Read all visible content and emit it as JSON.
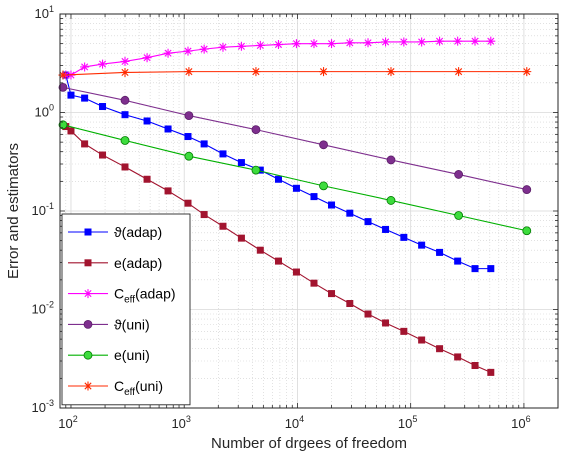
{
  "chart_data": {
    "type": "line",
    "xscale": "log",
    "yscale": "log",
    "xlim": [
      80,
      2000000
    ],
    "ylim": [
      0.001,
      10
    ],
    "xlabel": "Number of drgees of freedom",
    "ylabel": "Error and estimators",
    "x_ticks": [
      {
        "base": "10",
        "exp": "2"
      },
      {
        "base": "10",
        "exp": "3"
      },
      {
        "base": "10",
        "exp": "4"
      },
      {
        "base": "10",
        "exp": "5"
      },
      {
        "base": "10",
        "exp": "6"
      }
    ],
    "y_ticks": [
      {
        "base": "10",
        "exp": "-3"
      },
      {
        "base": "10",
        "exp": "-2"
      },
      {
        "base": "10",
        "exp": "-1"
      },
      {
        "base": "10",
        "exp": "0"
      },
      {
        "base": "10",
        "exp": "1"
      }
    ],
    "grid": true,
    "legend_position": "bottom-left",
    "series": [
      {
        "name": "ϑ(adap)",
        "color": "#0000ff",
        "marker": "square",
        "x": [
          90,
          100,
          132,
          190,
          300,
          470,
          720,
          1080,
          1500,
          2200,
          3200,
          4700,
          6800,
          9800,
          14000,
          20000,
          29000,
          42000,
          60000,
          87000,
          125000,
          180000,
          260000,
          370000,
          510000
        ],
        "y": [
          2.4,
          1.5,
          1.4,
          1.15,
          0.95,
          0.82,
          0.68,
          0.57,
          0.48,
          0.38,
          0.31,
          0.26,
          0.21,
          0.17,
          0.14,
          0.115,
          0.095,
          0.078,
          0.065,
          0.054,
          0.045,
          0.038,
          0.031,
          0.026,
          0.026
        ]
      },
      {
        "name": "e(adap)",
        "color": "#a2142f",
        "marker": "square",
        "x": [
          90,
          100,
          132,
          190,
          300,
          470,
          720,
          1080,
          1500,
          2200,
          3200,
          4700,
          6800,
          9800,
          14000,
          20000,
          29000,
          42000,
          60000,
          87000,
          125000,
          180000,
          260000,
          370000,
          510000
        ],
        "y": [
          0.72,
          0.65,
          0.48,
          0.37,
          0.28,
          0.21,
          0.16,
          0.12,
          0.092,
          0.07,
          0.053,
          0.04,
          0.031,
          0.024,
          0.0185,
          0.0145,
          0.0115,
          0.009,
          0.0073,
          0.006,
          0.0049,
          0.004,
          0.0033,
          0.0027,
          0.0023
        ]
      },
      {
        "name": "Ceff(adap)",
        "color": "#ff00ff",
        "marker": "star",
        "x": [
          90,
          100,
          132,
          190,
          300,
          470,
          720,
          1080,
          1500,
          2200,
          3200,
          4700,
          6800,
          9800,
          14000,
          20000,
          29000,
          42000,
          60000,
          87000,
          125000,
          180000,
          260000,
          370000,
          510000
        ],
        "y": [
          2.4,
          2.4,
          2.9,
          3.1,
          3.3,
          3.6,
          4.0,
          4.2,
          4.4,
          4.6,
          4.7,
          4.8,
          4.9,
          5.0,
          5.0,
          5.0,
          5.1,
          5.1,
          5.2,
          5.2,
          5.2,
          5.3,
          5.3,
          5.3,
          5.3
        ]
      },
      {
        "name": "ϑ(uni)",
        "color": "#7e2f8e",
        "marker": "circle",
        "x": [
          85,
          300,
          1100,
          4300,
          17000,
          67000,
          265000,
          1060000
        ],
        "y": [
          1.8,
          1.33,
          0.93,
          0.67,
          0.47,
          0.33,
          0.235,
          0.165
        ]
      },
      {
        "name": "e(uni)",
        "color": "#00b000",
        "marker": "circle",
        "x": [
          85,
          300,
          1100,
          4300,
          17000,
          67000,
          265000,
          1060000
        ],
        "y": [
          0.75,
          0.52,
          0.36,
          0.26,
          0.18,
          0.128,
          0.09,
          0.063
        ]
      },
      {
        "name": "Ceff(uni)",
        "color": "#ff2a00",
        "marker": "star",
        "x": [
          85,
          300,
          1100,
          4300,
          17000,
          67000,
          265000,
          1060000
        ],
        "y": [
          2.4,
          2.55,
          2.6,
          2.6,
          2.6,
          2.6,
          2.6,
          2.6
        ]
      }
    ],
    "legend": [
      {
        "prefix": "ϑ",
        "main": "(adap)",
        "sub": ""
      },
      {
        "prefix": "",
        "main": " e(adap)",
        "sub": ""
      },
      {
        "prefix": "C",
        "main": "(adap)",
        "sub": "eff"
      },
      {
        "prefix": "ϑ",
        "main": "(uni)",
        "sub": ""
      },
      {
        "prefix": "",
        "main": " e(uni)",
        "sub": ""
      },
      {
        "prefix": "C",
        "main": "(uni)",
        "sub": "eff"
      }
    ]
  }
}
